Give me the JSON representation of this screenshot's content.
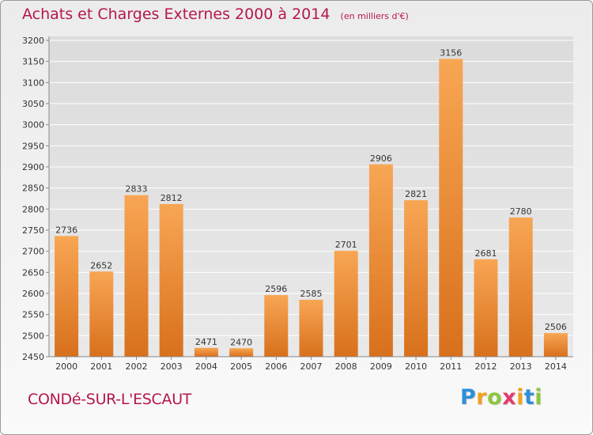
{
  "title": "Achats et Charges Externes 2000 à 2014",
  "subtitle": "(en milliers d'€)",
  "commune": "CONDé-SUR-L'ESCAUT",
  "brand": {
    "letters": [
      "P",
      "r",
      "o",
      "x",
      "i",
      "t",
      "i"
    ],
    "colors": [
      "#2f8fd6",
      "#f0a020",
      "#8cc63e",
      "#e23a6d",
      "#f0a020",
      "#2f8fd6",
      "#8cc63e"
    ]
  },
  "colors": {
    "title": "#b5174d",
    "bar_light": "#f8a654",
    "bar_dark": "#d8701c",
    "grid": "#ffffff"
  },
  "chart_data": {
    "type": "bar",
    "categories": [
      "2000",
      "2001",
      "2002",
      "2003",
      "2004",
      "2005",
      "2006",
      "2007",
      "2008",
      "2009",
      "2010",
      "2011",
      "2012",
      "2013",
      "2014"
    ],
    "values": [
      2736,
      2652,
      2833,
      2812,
      2471,
      2470,
      2596,
      2585,
      2701,
      2906,
      2821,
      3156,
      2681,
      2780,
      2506
    ],
    "yticks": [
      2450,
      2500,
      2550,
      2600,
      2650,
      2700,
      2750,
      2800,
      2850,
      2900,
      2950,
      3000,
      3050,
      3100,
      3150,
      3200
    ],
    "ylim": [
      2450,
      3200
    ],
    "grid": true,
    "data_labels": true
  }
}
